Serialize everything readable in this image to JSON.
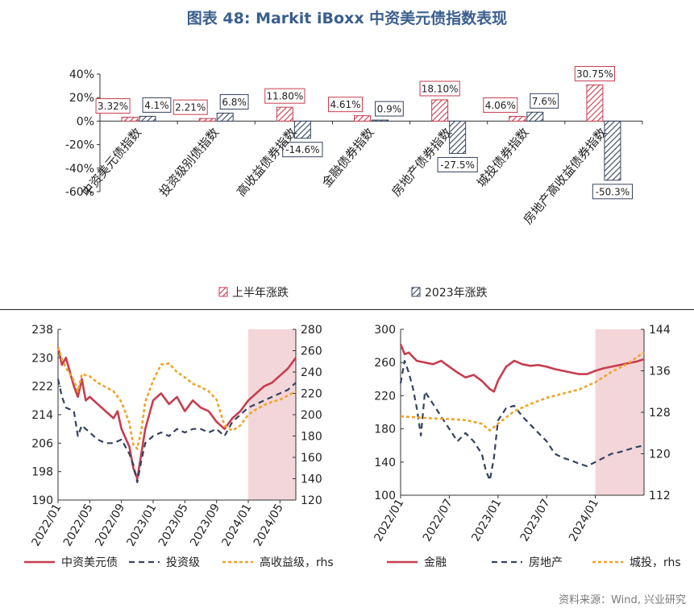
{
  "title": "图表 48: Markit iBoxx 中资美元债指数表现",
  "source": "资料来源：Wind, 兴业研究",
  "colors": {
    "red": "#c63d4f",
    "navy": "#34425e",
    "orange": "#eea52a",
    "shade": "#f3d6d9",
    "title": "#3b5f8e"
  },
  "chart_data": [
    {
      "type": "bar",
      "title": "",
      "categories": [
        "中资美元债指数",
        "投资级别债指数",
        "高收益债券指数",
        "金融债券指数",
        "房地产债券指数",
        "城投债券指数",
        "房地产高收益债券指数"
      ],
      "series": [
        {
          "name": "上半年涨跌",
          "values": [
            3.32,
            2.21,
            11.8,
            4.61,
            18.1,
            4.06,
            30.75
          ],
          "labels": [
            "3.32%",
            "2.21%",
            "11.80%",
            "4.61%",
            "18.10%",
            "4.06%",
            "30.75%"
          ]
        },
        {
          "name": "2023年涨跌",
          "values": [
            4.1,
            6.8,
            -14.6,
            0.9,
            -27.5,
            7.6,
            -50.3
          ],
          "labels": [
            "4.1%",
            "6.8%",
            "-14.6%",
            "0.9%",
            "-27.5%",
            "7.6%",
            "-50.3%"
          ]
        }
      ],
      "ylim": [
        -60,
        40
      ],
      "yticks": [
        "40%",
        "20%",
        "0%",
        "-20%",
        "-40%",
        "-60%"
      ],
      "legend": [
        "上半年涨跌",
        "2023年涨跌"
      ]
    },
    {
      "type": "line",
      "xlim": [
        "2022/01",
        "2024/07"
      ],
      "xticks": [
        "2022/01",
        "2022/05",
        "2022/09",
        "2023/01",
        "2023/05",
        "2023/09",
        "2024/01",
        "2024/05"
      ],
      "ylim": [
        190,
        238
      ],
      "yticks": [
        "238",
        "230",
        "222",
        "214",
        "206",
        "198",
        "190"
      ],
      "y2lim": [
        120,
        280
      ],
      "y2ticks": [
        "280",
        "260",
        "240",
        "220",
        "200",
        "180",
        "160",
        "140",
        "120"
      ],
      "shaded": [
        "2024/01",
        "2024/07"
      ],
      "legend": [
        "中资美元债",
        "投资级",
        "高收益级，rhs"
      ],
      "series": [
        {
          "name": "中资美元债",
          "axis": "left",
          "style": "solid",
          "points": [
            [
              0,
              233
            ],
            [
              0.5,
              228
            ],
            [
              1,
              230
            ],
            [
              2,
              222
            ],
            [
              2.5,
              219
            ],
            [
              3,
              224
            ],
            [
              3.5,
              218
            ],
            [
              4,
              219
            ],
            [
              5,
              217
            ],
            [
              6,
              215
            ],
            [
              7,
              213
            ],
            [
              7.5,
              215
            ],
            [
              8,
              210
            ],
            [
              9,
              205
            ],
            [
              9.5,
              199
            ],
            [
              10,
              196
            ],
            [
              10.5,
              203
            ],
            [
              11,
              210
            ],
            [
              12,
              218
            ],
            [
              13,
              220
            ],
            [
              14,
              217
            ],
            [
              15,
              219
            ],
            [
              16,
              215
            ],
            [
              17,
              218
            ],
            [
              18,
              216
            ],
            [
              19,
              215
            ],
            [
              20,
              212
            ],
            [
              21,
              210
            ],
            [
              22,
              213
            ],
            [
              23,
              215
            ],
            [
              24,
              218
            ],
            [
              25,
              220
            ],
            [
              26,
              222
            ],
            [
              27,
              223
            ],
            [
              28,
              225
            ],
            [
              29,
              227
            ],
            [
              30,
              230
            ]
          ]
        },
        {
          "name": "投资级",
          "axis": "left",
          "style": "dashed",
          "points": [
            [
              0,
              224
            ],
            [
              0.5,
              219
            ],
            [
              1,
              216
            ],
            [
              2,
              215
            ],
            [
              2.5,
              208
            ],
            [
              3,
              211
            ],
            [
              4,
              209
            ],
            [
              5,
              207
            ],
            [
              6,
              206
            ],
            [
              7,
              206
            ],
            [
              8,
              207
            ],
            [
              9,
              203
            ],
            [
              9.5,
              200
            ],
            [
              10,
              195
            ],
            [
              10.5,
              201
            ],
            [
              11,
              206
            ],
            [
              12,
              208
            ],
            [
              13,
              209
            ],
            [
              14,
              208
            ],
            [
              15,
              210
            ],
            [
              16,
              209
            ],
            [
              17,
              210
            ],
            [
              18,
              210
            ],
            [
              19,
              209
            ],
            [
              20,
              210
            ],
            [
              21,
              208
            ],
            [
              22,
              212
            ],
            [
              23,
              214
            ],
            [
              24,
              216
            ],
            [
              25,
              217
            ],
            [
              26,
              218
            ],
            [
              27,
              219
            ],
            [
              28,
              220
            ],
            [
              29,
              221
            ],
            [
              30,
              223
            ]
          ]
        },
        {
          "name": "高收益级，rhs",
          "axis": "right",
          "style": "dotted",
          "points": [
            [
              0,
              263
            ],
            [
              0.5,
              252
            ],
            [
              1,
              244
            ],
            [
              2,
              232
            ],
            [
              2.5,
              222
            ],
            [
              3,
              238
            ],
            [
              4,
              236
            ],
            [
              5,
              230
            ],
            [
              6,
              226
            ],
            [
              7,
              222
            ],
            [
              8,
              212
            ],
            [
              9,
              192
            ],
            [
              9.5,
              172
            ],
            [
              10,
              168
            ],
            [
              10.5,
              185
            ],
            [
              11,
              212
            ],
            [
              12,
              232
            ],
            [
              13,
              247
            ],
            [
              14,
              248
            ],
            [
              15,
              240
            ],
            [
              16,
              235
            ],
            [
              17,
              229
            ],
            [
              18,
              226
            ],
            [
              19,
              222
            ],
            [
              20,
              214
            ],
            [
              21,
              190
            ],
            [
              22,
              185
            ],
            [
              23,
              190
            ],
            [
              24,
              200
            ],
            [
              25,
              205
            ],
            [
              26,
              209
            ],
            [
              27,
              212
            ],
            [
              28,
              214
            ],
            [
              29,
              218
            ],
            [
              30,
              222
            ]
          ]
        }
      ]
    },
    {
      "type": "line",
      "xlim": [
        "2022/01",
        "2024/07"
      ],
      "xticks": [
        "2022/01",
        "2022/07",
        "2023/01",
        "2023/07",
        "2024/01"
      ],
      "ylim": [
        100,
        300
      ],
      "yticks": [
        "300",
        "260",
        "220",
        "180",
        "140",
        "100"
      ],
      "y2lim": [
        112,
        144
      ],
      "y2ticks": [
        "144",
        "136",
        "128",
        "120",
        "112"
      ],
      "shaded": [
        "2024/01",
        "2024/07"
      ],
      "legend": [
        "金融",
        "房地产",
        "城投，rhs"
      ],
      "series": [
        {
          "name": "金融",
          "axis": "left",
          "style": "solid",
          "points": [
            [
              0,
              282
            ],
            [
              0.5,
              270
            ],
            [
              1,
              272
            ],
            [
              2,
              262
            ],
            [
              3,
              260
            ],
            [
              4,
              258
            ],
            [
              5,
              262
            ],
            [
              6,
              255
            ],
            [
              7,
              248
            ],
            [
              8,
              242
            ],
            [
              9,
              245
            ],
            [
              10,
              238
            ],
            [
              11,
              228
            ],
            [
              11.5,
              225
            ],
            [
              12,
              238
            ],
            [
              13,
              255
            ],
            [
              14,
              262
            ],
            [
              15,
              258
            ],
            [
              16,
              256
            ],
            [
              17,
              257
            ],
            [
              18,
              255
            ],
            [
              19,
              252
            ],
            [
              20,
              250
            ],
            [
              21,
              248
            ],
            [
              22,
              246
            ],
            [
              23,
              246
            ],
            [
              24,
              250
            ],
            [
              25,
              253
            ],
            [
              26,
              255
            ],
            [
              27,
              257
            ],
            [
              28,
              259
            ],
            [
              29,
              261
            ],
            [
              30,
              264
            ]
          ]
        },
        {
          "name": "房地产",
          "axis": "left",
          "style": "dashed",
          "points": [
            [
              0,
              235
            ],
            [
              0.5,
              262
            ],
            [
              1,
              248
            ],
            [
              1.5,
              230
            ],
            [
              2,
              205
            ],
            [
              2.5,
              172
            ],
            [
              3,
              225
            ],
            [
              4,
              210
            ],
            [
              5,
              195
            ],
            [
              6,
              180
            ],
            [
              7,
              165
            ],
            [
              8,
              175
            ],
            [
              9,
              165
            ],
            [
              10,
              150
            ],
            [
              10.5,
              130
            ],
            [
              11,
              118
            ],
            [
              11.5,
              145
            ],
            [
              12,
              190
            ],
            [
              13,
              205
            ],
            [
              14,
              208
            ],
            [
              15,
              195
            ],
            [
              16,
              185
            ],
            [
              17,
              175
            ],
            [
              18,
              165
            ],
            [
              19,
              150
            ],
            [
              20,
              145
            ],
            [
              21,
              142
            ],
            [
              22,
              138
            ],
            [
              23,
              135
            ],
            [
              24,
              140
            ],
            [
              25,
              145
            ],
            [
              26,
              150
            ],
            [
              27,
              152
            ],
            [
              28,
              155
            ],
            [
              29,
              158
            ],
            [
              30,
              160
            ]
          ]
        },
        {
          "name": "城投，rhs",
          "axis": "right",
          "style": "dotted",
          "points": [
            [
              0,
              127.2
            ],
            [
              2,
              127.0
            ],
            [
              4,
              126.8
            ],
            [
              6,
              126.7
            ],
            [
              8,
              126.5
            ],
            [
              10,
              125.8
            ],
            [
              11,
              124.5
            ],
            [
              12,
              125.8
            ],
            [
              14,
              128.2
            ],
            [
              16,
              129.6
            ],
            [
              18,
              130.8
            ],
            [
              20,
              131.6
            ],
            [
              22,
              132.4
            ],
            [
              24,
              133.8
            ],
            [
              26,
              135.8
            ],
            [
              28,
              137.4
            ],
            [
              30,
              139.6
            ]
          ]
        }
      ]
    }
  ]
}
